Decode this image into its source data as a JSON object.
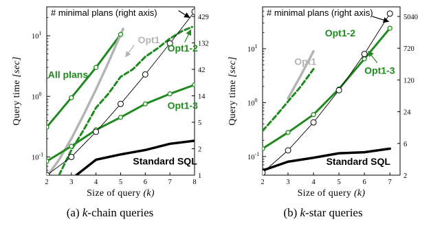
{
  "chart_data": [
    {
      "type": "line",
      "caption_prefix": "(a) ",
      "caption_italic": "k",
      "caption_suffix": "-chain queries",
      "inner_title": "# minimal plans (right axis)",
      "ylabel_text": "Query time ",
      "ylabel_unit": "[sec]",
      "xlabel_text": "Size of query ",
      "xlabel_var": "(k)",
      "x_ticks": [
        2,
        3,
        4,
        5,
        6,
        7,
        8
      ],
      "xlim": [
        2,
        8
      ],
      "ylim": [
        0.05,
        30
      ],
      "yscale": "log",
      "y_ticks": [
        {
          "v": 0.1,
          "base": "10",
          "exp": "-1"
        },
        {
          "v": 1,
          "base": "10",
          "exp": "0"
        },
        {
          "v": 10,
          "base": "10",
          "exp": "1"
        }
      ],
      "y2_ticks": [
        "1",
        "2",
        "5",
        "14",
        "42",
        "132",
        "429"
      ],
      "series": [
        {
          "name": "All plans",
          "color": "#1e8a1e",
          "style": "solid",
          "width": 3,
          "markers": true,
          "x": [
            2,
            3,
            4,
            5
          ],
          "y": [
            0.31,
            0.95,
            3.0,
            10.5
          ]
        },
        {
          "name": "Opt1",
          "color": "#b4b4b4",
          "style": "solid",
          "width": 3.5,
          "markers": false,
          "x": [
            2.05,
            2.5,
            3,
            3.5,
            4,
            4.5,
            5.1
          ],
          "y": [
            0.05,
            0.09,
            0.2,
            0.5,
            1.3,
            3.6,
            13
          ]
        },
        {
          "name": "Opt1-2",
          "color": "#1e8a1e",
          "style": "dashed",
          "width": 3,
          "markers": false,
          "x": [
            2.5,
            3,
            3.5,
            4,
            4.5,
            5,
            5.5,
            6,
            6.5,
            7,
            7.5,
            7.9
          ],
          "y": [
            0.05,
            0.13,
            0.28,
            0.65,
            1.1,
            2.1,
            2.8,
            4.5,
            6.2,
            9.0,
            12.0,
            14.0
          ]
        },
        {
          "name": "Opt1-3",
          "color": "#1e8a1e",
          "style": "solid",
          "width": 3,
          "markers": true,
          "x": [
            2,
            3,
            4,
            5,
            6,
            7,
            8
          ],
          "y": [
            0.085,
            0.15,
            0.28,
            0.45,
            0.75,
            1.1,
            1.55
          ]
        },
        {
          "name": "Standard SQL",
          "color": "#000000",
          "style": "solid",
          "width": 3.5,
          "markers": false,
          "x": [
            3.2,
            4,
            5,
            6,
            7,
            8
          ],
          "y": [
            0.05,
            0.09,
            0.11,
            0.13,
            0.165,
            0.185
          ]
        },
        {
          "name": "# minimal plans",
          "color": "#000000",
          "style": "solid",
          "width": 0.9,
          "markers": true,
          "hollow": true,
          "x": [
            2,
            3,
            4,
            5,
            6,
            7,
            8
          ],
          "y": [
            0.05,
            0.1,
            0.26,
            0.75,
            2.3,
            7.5,
            25
          ]
        }
      ],
      "annotations": [
        {
          "text": "All plans",
          "color": "#1e8a1e",
          "x": 2.05,
          "y": 2.0
        },
        {
          "text": "Opt1",
          "color": "#b4b4b4",
          "x": 5.7,
          "y": 7.5
        },
        {
          "text": "Opt1-2",
          "color": "#1e8a1e",
          "x": 6.9,
          "y": 5.5
        },
        {
          "text": "Opt1-3",
          "color": "#1e8a1e",
          "x": 6.9,
          "y": 0.62
        },
        {
          "text": "Standard SQL",
          "color": "#000000",
          "x": 5.5,
          "y": 0.075
        }
      ],
      "arrows": [
        {
          "color": "#b4b4b4",
          "x1": 5.55,
          "y1": 7.0,
          "x2": 5.2,
          "y2": 4.5
        },
        {
          "color": "#1e8a1e",
          "x1": 7.6,
          "y1": 7.8,
          "x2": 7.85,
          "y2": 12.5
        },
        {
          "color": "#000000",
          "x1": 7.35,
          "y1": 26,
          "x2": 7.8,
          "y2": 20
        }
      ]
    },
    {
      "type": "line",
      "caption_prefix": "(b) ",
      "caption_italic": "k",
      "caption_suffix": "-star queries",
      "inner_title": "# minimal plans (right axis)",
      "ylabel_text": "Query time ",
      "ylabel_unit": "[sec]",
      "xlabel_text": "Size of query ",
      "xlabel_var": "(k)",
      "x_ticks": [
        2,
        3,
        4,
        5,
        6,
        7
      ],
      "xlim": [
        2,
        7.4
      ],
      "ylim": [
        0.045,
        60
      ],
      "yscale": "log",
      "y_ticks": [
        {
          "v": 0.1,
          "base": "10",
          "exp": "-1"
        },
        {
          "v": 1,
          "base": "10",
          "exp": "0"
        },
        {
          "v": 10,
          "base": "10",
          "exp": "1"
        }
      ],
      "y2_ticks": [
        "2",
        "6",
        "24",
        "120",
        "720",
        "5040"
      ],
      "series": [
        {
          "name": "Opt1",
          "color": "#b4b4b4",
          "style": "solid",
          "width": 3.5,
          "markers": false,
          "x": [
            3,
            3.5,
            4
          ],
          "y": [
            1.2,
            3.2,
            9.0
          ]
        },
        {
          "name": "Opt1-2",
          "color": "#1e8a1e",
          "style": "dashed",
          "width": 3,
          "markers": false,
          "x": [
            2,
            2.5,
            3,
            3.5,
            4
          ],
          "y": [
            0.3,
            0.55,
            1.05,
            2.0,
            4.2
          ]
        },
        {
          "name": "Opt1-3",
          "color": "#1e8a1e",
          "style": "solid",
          "width": 3,
          "markers": true,
          "x": [
            2,
            3,
            4,
            5,
            6,
            7
          ],
          "y": [
            0.14,
            0.28,
            0.6,
            1.8,
            6.5,
            24
          ]
        },
        {
          "name": "Standard SQL",
          "color": "#000000",
          "style": "solid",
          "width": 3.5,
          "markers": false,
          "x": [
            2,
            3,
            4,
            5,
            6,
            7
          ],
          "y": [
            0.055,
            0.08,
            0.095,
            0.115,
            0.12,
            0.14
          ]
        },
        {
          "name": "# minimal plans",
          "color": "#000000",
          "style": "solid",
          "width": 0.9,
          "markers": true,
          "hollow": true,
          "x": [
            2,
            3,
            4,
            5,
            6,
            7
          ],
          "y": [
            0.05,
            0.13,
            0.43,
            1.7,
            8.0,
            45
          ]
        }
      ],
      "annotations": [
        {
          "text": "Opt1",
          "color": "#b4b4b4",
          "x": 3.25,
          "y": 5.0
        },
        {
          "text": "Opt1-2",
          "color": "#1e8a1e",
          "x": 4.45,
          "y": 17
        },
        {
          "text": "Opt1-3",
          "color": "#1e8a1e",
          "x": 6.0,
          "y": 3.4
        },
        {
          "text": "Standard SQL",
          "color": "#000000",
          "x": 4.5,
          "y": 0.07
        }
      ],
      "arrows": [
        {
          "color": "#1e8a1e",
          "x1": 6.5,
          "y1": 5.5,
          "x2": 6.15,
          "y2": 9.0
        },
        {
          "color": "#000000",
          "x1": 6.3,
          "y1": 40,
          "x2": 6.95,
          "y2": 32
        }
      ]
    }
  ]
}
